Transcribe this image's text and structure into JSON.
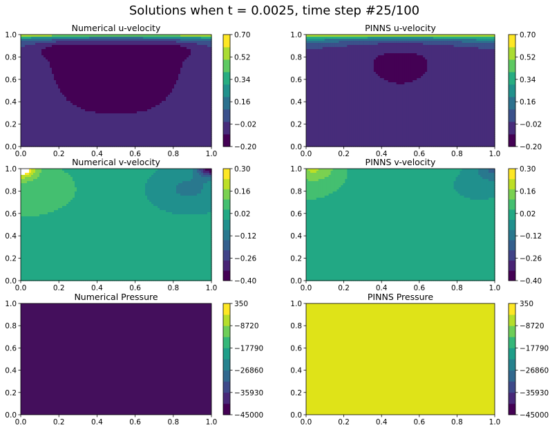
{
  "figure": {
    "title": "Solutions when t = 0.0025, time step #25/100"
  },
  "chart_data": [
    {
      "type": "contour",
      "title": "Numerical u-velocity",
      "xlim": [
        0,
        1
      ],
      "ylim": [
        0,
        1
      ],
      "xticks": [
        "0.0",
        "0.2",
        "0.4",
        "0.6",
        "0.8",
        "1.0"
      ],
      "yticks": [
        "0.0",
        "0.2",
        "0.4",
        "0.6",
        "0.8",
        "1.0"
      ],
      "colorbar": {
        "ticks": [
          "0.70",
          "0.52",
          "0.34",
          "0.16",
          "−0.02",
          "−0.20"
        ],
        "vmin": -0.2,
        "vmax": 0.7,
        "level_colors": [
          "#440154",
          "#472c7a",
          "#3b518b",
          "#2c718e",
          "#21918c",
          "#27ad81",
          "#5ec962",
          "#aadc32",
          "#fde725"
        ]
      },
      "field": "u_numerical"
    },
    {
      "type": "contour",
      "title": "PINNS u-velocity",
      "xlim": [
        0,
        1
      ],
      "ylim": [
        0,
        1
      ],
      "xticks": [
        "0.0",
        "0.2",
        "0.4",
        "0.6",
        "0.8",
        "1.0"
      ],
      "yticks": [
        "0.0",
        "0.2",
        "0.4",
        "0.6",
        "0.8",
        "1.0"
      ],
      "colorbar": {
        "ticks": [
          "0.70",
          "0.52",
          "0.34",
          "0.16",
          "−0.02",
          "−0.20"
        ],
        "vmin": -0.2,
        "vmax": 0.7,
        "level_colors": [
          "#440154",
          "#472c7a",
          "#3b518b",
          "#2c718e",
          "#21918c",
          "#27ad81",
          "#5ec962",
          "#aadc32",
          "#fde725"
        ]
      },
      "field": "u_pinns"
    },
    {
      "type": "contour",
      "title": "Numerical v-velocity",
      "xlim": [
        0,
        1
      ],
      "ylim": [
        0,
        1
      ],
      "xticks": [
        "0.0",
        "0.2",
        "0.4",
        "0.6",
        "0.8",
        "1.0"
      ],
      "yticks": [
        "0.0",
        "0.2",
        "0.4",
        "0.6",
        "0.8",
        "1.0"
      ],
      "colorbar": {
        "ticks": [
          "0.30",
          "0.16",
          "0.02",
          "−0.12",
          "−0.26",
          "−0.40"
        ],
        "vmin": -0.4,
        "vmax": 0.3,
        "level_colors": [
          "#440154",
          "#482374",
          "#404387",
          "#345f8d",
          "#29788e",
          "#20908d",
          "#22a884",
          "#44bf70",
          "#7ad151",
          "#bddf26",
          "#fde725"
        ]
      },
      "field": "v_numerical"
    },
    {
      "type": "contour",
      "title": "PINNS v-velocity",
      "xlim": [
        0,
        1
      ],
      "ylim": [
        0,
        1
      ],
      "xticks": [
        "0.0",
        "0.2",
        "0.4",
        "0.6",
        "0.8",
        "1.0"
      ],
      "yticks": [
        "0.0",
        "0.2",
        "0.4",
        "0.6",
        "0.8",
        "1.0"
      ],
      "colorbar": {
        "ticks": [
          "0.30",
          "0.16",
          "0.02",
          "−0.12",
          "−0.26",
          "−0.40"
        ],
        "vmin": -0.4,
        "vmax": 0.3,
        "level_colors": [
          "#440154",
          "#482374",
          "#404387",
          "#345f8d",
          "#29788e",
          "#20908d",
          "#22a884",
          "#44bf70",
          "#7ad151",
          "#bddf26",
          "#fde725"
        ]
      },
      "field": "v_pinns"
    },
    {
      "type": "contour",
      "title": "Numerical Pressure",
      "xlim": [
        0,
        1
      ],
      "ylim": [
        0,
        1
      ],
      "xticks": [
        "0.0",
        "0.2",
        "0.4",
        "0.6",
        "0.8",
        "1.0"
      ],
      "yticks": [
        "0.0",
        "0.2",
        "0.4",
        "0.6",
        "0.8",
        "1.0"
      ],
      "colorbar": {
        "ticks": [
          "350",
          "−8720",
          "−17790",
          "−26860",
          "−35930",
          "−45000"
        ],
        "vmin": -45000,
        "vmax": 350,
        "level_colors": [
          "#440154",
          "#482878",
          "#3e4989",
          "#31688e",
          "#26828e",
          "#1f9e89",
          "#35b779",
          "#6ece58",
          "#b5de2b",
          "#fde725"
        ]
      },
      "field": "p_numerical",
      "fill_color": "#440f5c"
    },
    {
      "type": "contour",
      "title": "PINNS Pressure",
      "xlim": [
        0,
        1
      ],
      "ylim": [
        0,
        1
      ],
      "xticks": [
        "0.0",
        "0.2",
        "0.4",
        "0.6",
        "0.8",
        "1.0"
      ],
      "yticks": [
        "0.0",
        "0.2",
        "0.4",
        "0.6",
        "0.8",
        "1.0"
      ],
      "colorbar": {
        "ticks": [
          "350",
          "−8720",
          "−17790",
          "−26860",
          "−35930",
          "−45000"
        ],
        "vmin": -45000,
        "vmax": 350,
        "level_colors": [
          "#440154",
          "#482878",
          "#3e4989",
          "#31688e",
          "#26828e",
          "#1f9e89",
          "#35b779",
          "#6ece58",
          "#b5de2b",
          "#fde725"
        ]
      },
      "field": "p_pinns",
      "fill_color": "#dfe318"
    }
  ]
}
